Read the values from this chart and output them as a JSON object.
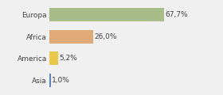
{
  "categories": [
    "Europa",
    "Africa",
    "America",
    "Asia"
  ],
  "values": [
    67.7,
    26.0,
    5.2,
    1.0
  ],
  "labels": [
    "67,7%",
    "26,0%",
    "5,2%",
    "1,0%"
  ],
  "bar_colors": [
    "#a8bc8a",
    "#e0aa78",
    "#e8c84a",
    "#6080b8"
  ],
  "background_color": "#f0f0f0",
  "xlim": [
    0,
    100
  ],
  "bar_height": 0.62,
  "label_fontsize": 6.5,
  "tick_fontsize": 6.5
}
